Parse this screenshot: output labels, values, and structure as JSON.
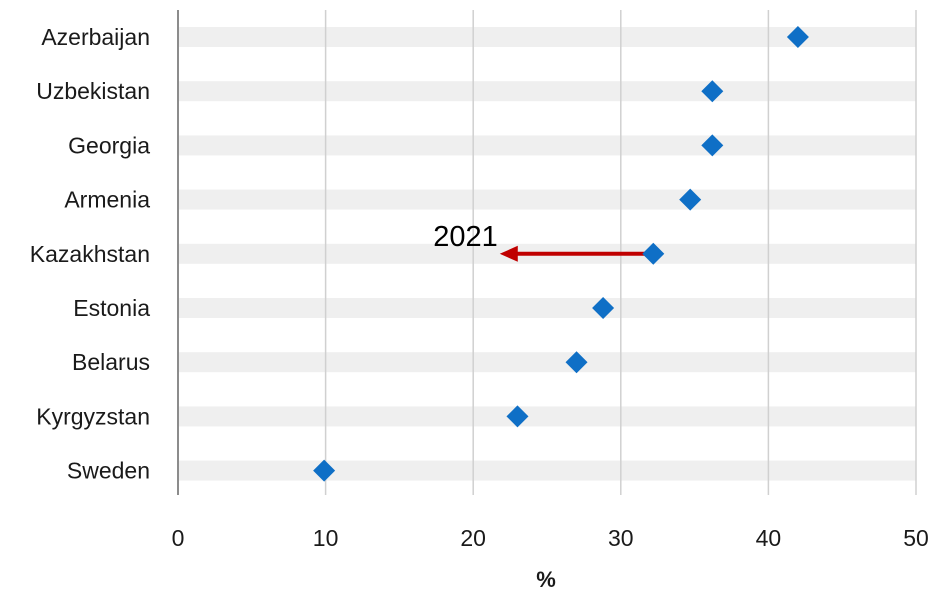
{
  "chart_data": {
    "type": "scatter",
    "categories": [
      "Azerbaijan",
      "Uzbekistan",
      "Georgia",
      "Armenia",
      "Kazakhstan",
      "Estonia",
      "Belarus",
      "Kyrgyzstan",
      "Sweden"
    ],
    "values": [
      42.0,
      36.2,
      36.2,
      34.7,
      32.2,
      28.8,
      27.0,
      23.0,
      9.9
    ],
    "xlabel": "%",
    "xlim": [
      0,
      50
    ],
    "xticks": [
      0,
      10,
      20,
      30,
      40,
      50
    ],
    "tick_labels": [
      "0",
      "10",
      "20",
      "30",
      "40",
      "50"
    ],
    "grid": "vertical",
    "marker": "diamond",
    "colors": {
      "marker": "#0f6fc6",
      "band": "#efefef",
      "gridline": "#d0d0d0",
      "axis": "#8c8c8c",
      "arrow": "#c00000"
    },
    "annotation": {
      "text": "2021",
      "category": "Kazakhstan",
      "arrow_from": 32.2,
      "arrow_to": 21.8
    }
  }
}
